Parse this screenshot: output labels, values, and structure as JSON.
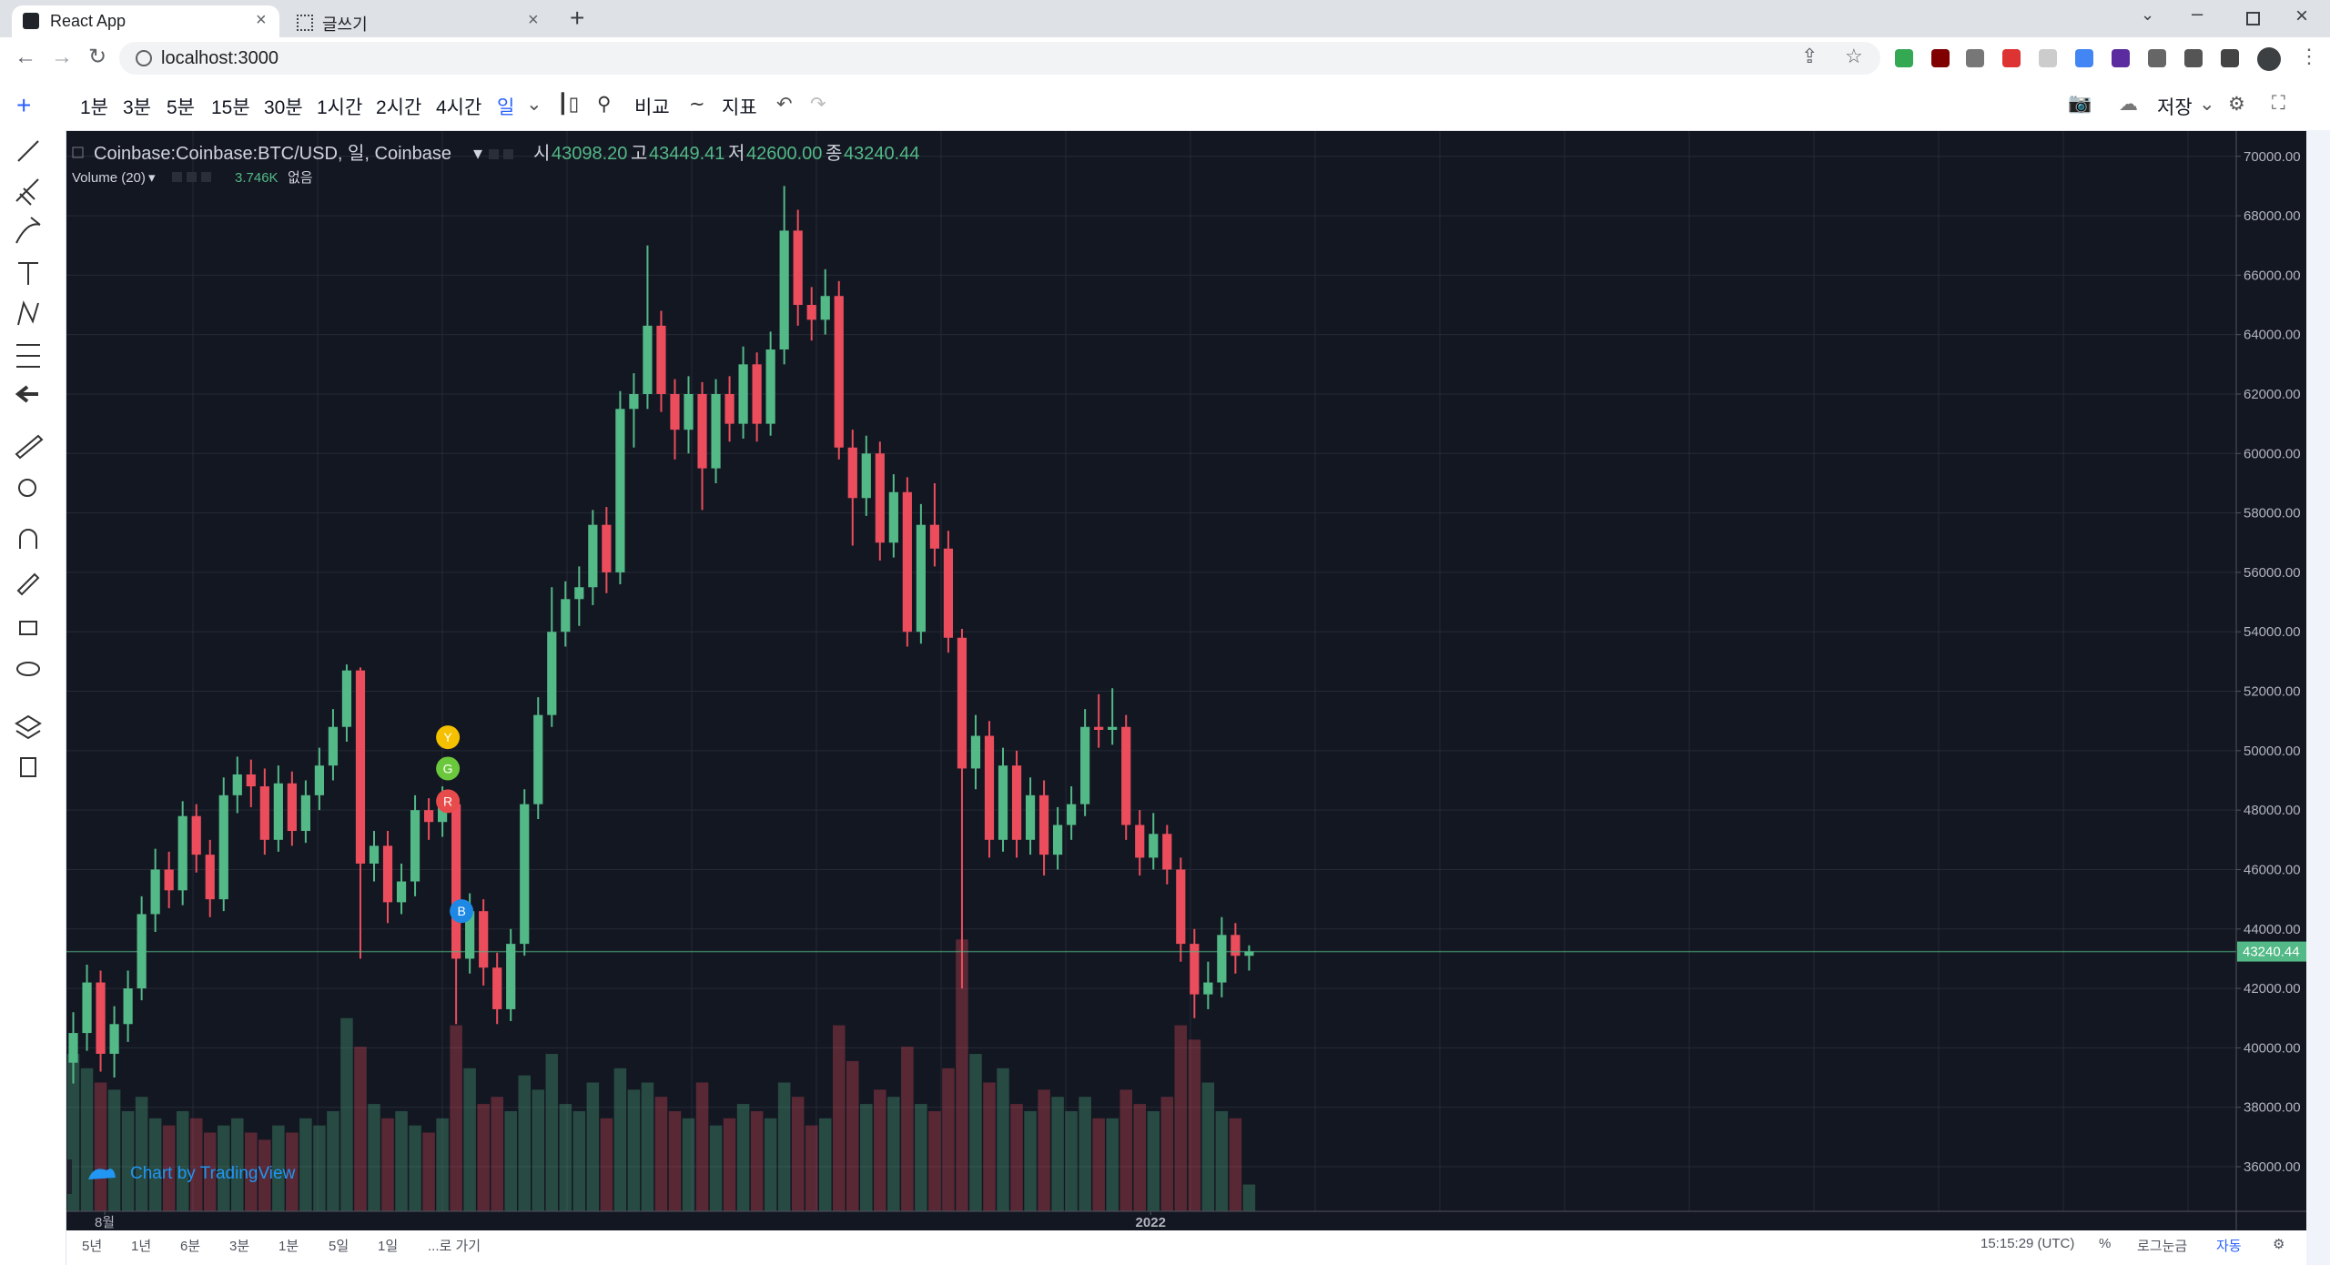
{
  "browser": {
    "tabs": [
      "React App",
      "글쓰기"
    ],
    "url": "localhost:3000"
  },
  "toolbar": {
    "intervals": [
      "1분",
      "3분",
      "5분",
      "15분",
      "30분",
      "1시간",
      "2시간",
      "4시간",
      "일"
    ],
    "compare": "비교",
    "indicators": "지표",
    "save": "저장"
  },
  "bottom_bar": {
    "ranges": [
      "5년",
      "1년",
      "6분",
      "3분",
      "1분",
      "5일",
      "1일",
      "...로 가기"
    ],
    "clock": "15:15:29 (UTC)",
    "percent": "%",
    "log": "로그눈금",
    "auto": "자동"
  },
  "chart_data": {
    "type": "candlestick",
    "title": "Coinbase:Coinbase:BTC/USD, 일, Coinbase",
    "ohlc_names": [
      "시",
      "고",
      "저",
      "종"
    ],
    "volume_title": "Volume (20)",
    "volume_extra": "없음",
    "watermark": "Chart by TradingView",
    "up_color": "#53b987",
    "down_color": "#eb4d5c",
    "grid": true,
    "xlim": [
      -0.5,
      158.2
    ],
    "xticks": [
      {
        "value": 2.3,
        "label": "8월"
      },
      {
        "value": 78.8,
        "label": "2022"
      }
    ],
    "ylim": [
      34500,
      70850
    ],
    "yticks": [
      {
        "value": 70000,
        "label": "70000.00"
      },
      {
        "value": 68000,
        "label": "68000.00"
      },
      {
        "value": 66000,
        "label": "66000.00"
      },
      {
        "value": 64000,
        "label": "64000.00"
      },
      {
        "value": 62000,
        "label": "62000.00"
      },
      {
        "value": 60000,
        "label": "60000.00"
      },
      {
        "value": 58000,
        "label": "58000.00"
      },
      {
        "value": 56000,
        "label": "56000.00"
      },
      {
        "value": 54000,
        "label": "54000.00"
      },
      {
        "value": 52000,
        "label": "52000.00"
      },
      {
        "value": 50000,
        "label": "50000.00"
      },
      {
        "value": 48000,
        "label": "48000.00"
      },
      {
        "value": 46000,
        "label": "46000.00"
      },
      {
        "value": 44000,
        "label": "44000.00"
      },
      {
        "value": 42000,
        "label": "42000.00"
      },
      {
        "value": 40000,
        "label": "40000.00"
      },
      {
        "value": 38000,
        "label": "38000.00"
      },
      {
        "value": 36000,
        "label": "36000.00"
      }
    ],
    "vlim": [
      0,
      151000
    ],
    "candles": [
      [
        39500,
        41200,
        38800,
        40500
      ],
      [
        40500,
        42800,
        39900,
        42200
      ],
      [
        42200,
        42600,
        39200,
        39800
      ],
      [
        39800,
        41400,
        39000,
        40800
      ],
      [
        40800,
        42600,
        40200,
        42000
      ],
      [
        42000,
        45100,
        41600,
        44500
      ],
      [
        44500,
        46700,
        43900,
        46000
      ],
      [
        46000,
        46600,
        44700,
        45300
      ],
      [
        45300,
        48300,
        44800,
        47800
      ],
      [
        47800,
        48200,
        45900,
        46500
      ],
      [
        46500,
        47000,
        44400,
        45000
      ],
      [
        45000,
        49100,
        44600,
        48500
      ],
      [
        48500,
        49800,
        47900,
        49200
      ],
      [
        49200,
        49700,
        48100,
        48800
      ],
      [
        48800,
        49400,
        46500,
        47000
      ],
      [
        47000,
        49500,
        46600,
        48900
      ],
      [
        48900,
        49300,
        46800,
        47300
      ],
      [
        47300,
        49000,
        46900,
        48500
      ],
      [
        48500,
        50100,
        48000,
        49500
      ],
      [
        49500,
        51400,
        49000,
        50800
      ],
      [
        50800,
        52900,
        50300,
        52700
      ],
      [
        52700,
        52800,
        43000,
        46200
      ],
      [
        46200,
        47300,
        45600,
        46800
      ],
      [
        46800,
        47300,
        44200,
        44900
      ],
      [
        44900,
        46200,
        44500,
        45600
      ],
      [
        45600,
        48500,
        45100,
        48000
      ],
      [
        48000,
        48400,
        47000,
        47600
      ],
      [
        47600,
        48800,
        47100,
        48200
      ],
      [
        48200,
        48500,
        40800,
        43000
      ],
      [
        43000,
        45200,
        42500,
        44600
      ],
      [
        44600,
        45000,
        42100,
        42700
      ],
      [
        42700,
        43200,
        40800,
        41300
      ],
      [
        41300,
        44000,
        40900,
        43500
      ],
      [
        43500,
        48700,
        43100,
        48200
      ],
      [
        48200,
        51800,
        47700,
        51200
      ],
      [
        51200,
        55500,
        50800,
        54000
      ],
      [
        54000,
        55700,
        53500,
        55100
      ],
      [
        55100,
        56200,
        54200,
        55500
      ],
      [
        55500,
        58100,
        54900,
        57600
      ],
      [
        57600,
        58200,
        55300,
        56000
      ],
      [
        56000,
        62100,
        55600,
        61500
      ],
      [
        61500,
        62700,
        60200,
        62000
      ],
      [
        62000,
        67000,
        61500,
        64300
      ],
      [
        64300,
        64800,
        61400,
        62000
      ],
      [
        62000,
        62500,
        59800,
        60800
      ],
      [
        60800,
        62600,
        60000,
        62000
      ],
      [
        62000,
        62400,
        58100,
        59500
      ],
      [
        59500,
        62500,
        59000,
        62000
      ],
      [
        62000,
        62600,
        60400,
        61000
      ],
      [
        61000,
        63600,
        60500,
        63000
      ],
      [
        63000,
        63400,
        60400,
        61000
      ],
      [
        61000,
        64100,
        60600,
        63500
      ],
      [
        63500,
        69000,
        63000,
        67500
      ],
      [
        67500,
        68200,
        64300,
        65000
      ],
      [
        65000,
        65600,
        63800,
        64500
      ],
      [
        64500,
        66200,
        64000,
        65300
      ],
      [
        65300,
        65800,
        59800,
        60200
      ],
      [
        60200,
        60800,
        56900,
        58500
      ],
      [
        58500,
        60600,
        57900,
        60000
      ],
      [
        60000,
        60400,
        56400,
        57000
      ],
      [
        57000,
        59300,
        56500,
        58700
      ],
      [
        58700,
        59200,
        53500,
        54000
      ],
      [
        54000,
        58300,
        53600,
        57600
      ],
      [
        57600,
        59000,
        56200,
        56800
      ],
      [
        56800,
        57400,
        53300,
        53800
      ],
      [
        53800,
        54100,
        42000,
        49400
      ],
      [
        49400,
        51200,
        48700,
        50500
      ],
      [
        50500,
        51000,
        46400,
        47000
      ],
      [
        47000,
        50100,
        46600,
        49500
      ],
      [
        49500,
        50000,
        46400,
        47000
      ],
      [
        47000,
        49100,
        46500,
        48500
      ],
      [
        48500,
        49000,
        45800,
        46500
      ],
      [
        46500,
        48100,
        46000,
        47500
      ],
      [
        47500,
        48800,
        47000,
        48200
      ],
      [
        48200,
        51400,
        47800,
        50800
      ],
      [
        50800,
        51900,
        50100,
        50700
      ],
      [
        50700,
        52100,
        50200,
        50800
      ],
      [
        50800,
        51200,
        47000,
        47500
      ],
      [
        47500,
        48000,
        45800,
        46400
      ],
      [
        46400,
        47900,
        46000,
        47200
      ],
      [
        47200,
        47500,
        45500,
        46000
      ],
      [
        46000,
        46400,
        42900,
        43500
      ],
      [
        43500,
        44000,
        41000,
        41800
      ],
      [
        41800,
        42900,
        41300,
        42200
      ],
      [
        42200,
        44400,
        41700,
        43800
      ],
      [
        43800,
        44200,
        42500,
        43098.2
      ],
      [
        43098.2,
        43449.41,
        42600,
        43240.44
      ]
    ],
    "volume": [
      22000,
      20000,
      18000,
      17000,
      14000,
      16000,
      13000,
      12000,
      14000,
      13000,
      11000,
      12000,
      13000,
      11000,
      10000,
      12000,
      11000,
      13000,
      12000,
      14000,
      27000,
      23000,
      15000,
      13000,
      14000,
      12000,
      11000,
      13000,
      26000,
      20000,
      15000,
      16000,
      14000,
      19000,
      17000,
      22000,
      15000,
      14000,
      18000,
      13000,
      20000,
      17000,
      18000,
      16000,
      14000,
      13000,
      18000,
      12000,
      13000,
      15000,
      14000,
      13000,
      18000,
      16000,
      12000,
      13000,
      26000,
      21000,
      15000,
      17000,
      16000,
      23000,
      15000,
      14000,
      20000,
      38000,
      22000,
      18000,
      20000,
      15000,
      14000,
      17000,
      16000,
      14000,
      16000,
      13000,
      13000,
      17000,
      15000,
      14000,
      16000,
      26000,
      24000,
      18000,
      14000,
      13000,
      3746
    ],
    "last_labels": {
      "open": "43098.20",
      "high": "43449.41",
      "low": "42600.00",
      "close": "43240.44",
      "volume": "3.746K"
    },
    "markers": [
      {
        "label": "Y",
        "color": "#f5c000",
        "at": 27,
        "price": 50450
      },
      {
        "label": "G",
        "color": "#6bc73b",
        "at": 27,
        "price": 49400
      },
      {
        "label": "R",
        "color": "#e84b4b",
        "at": 27,
        "price": 48300
      },
      {
        "label": "B",
        "color": "#1e88e5",
        "at": 28,
        "price": 44600
      }
    ]
  }
}
